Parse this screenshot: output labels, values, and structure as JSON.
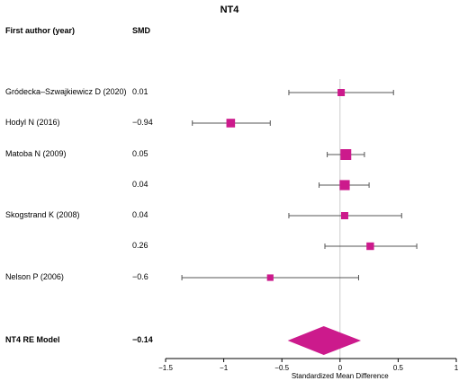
{
  "chart_data": {
    "type": "forest",
    "title": "NT4",
    "col_author_header": "First author (year)",
    "col_smd_header": "SMD",
    "xlabel": "Standardized Mean Difference",
    "xlim": [
      -1.5,
      1
    ],
    "xticks": [
      -1.5,
      -1,
      -0.5,
      0,
      0.5,
      1
    ],
    "xtick_labels": [
      "−1.5",
      "−1",
      "−0.5",
      "0",
      "0.5",
      "1"
    ],
    "reference_line": 0,
    "marker_color": "#cc1a8c",
    "studies": [
      {
        "author": "Gródecka–Szwajkiewicz D (2020)",
        "smd_label": "0.01",
        "smd": 0.01,
        "ci": [
          -0.44,
          0.46
        ],
        "weight": 0.5
      },
      {
        "author": "Hodyl N (2016)",
        "smd_label": "−0.94",
        "smd": -0.94,
        "ci": [
          -1.27,
          -0.6
        ],
        "weight": 0.7
      },
      {
        "author": "Matoba N (2009)",
        "smd_label": "0.05",
        "smd": 0.05,
        "ci": [
          -0.11,
          0.21
        ],
        "weight": 1.0
      },
      {
        "author": "",
        "smd_label": "0.04",
        "smd": 0.04,
        "ci": [
          -0.18,
          0.25
        ],
        "weight": 0.9
      },
      {
        "author": "Skogstrand K (2008)",
        "smd_label": "0.04",
        "smd": 0.04,
        "ci": [
          -0.44,
          0.53
        ],
        "weight": 0.5
      },
      {
        "author": "",
        "smd_label": "0.26",
        "smd": 0.26,
        "ci": [
          -0.13,
          0.66
        ],
        "weight": 0.55
      },
      {
        "author": "Nelson P (2006)",
        "smd_label": "−0.6",
        "smd": -0.6,
        "ci": [
          -1.36,
          0.16
        ],
        "weight": 0.4
      }
    ],
    "summary": {
      "label": "NT4 RE Model",
      "smd_label": "−0.14",
      "estimate": -0.14,
      "ci": [
        -0.45,
        0.18
      ]
    }
  }
}
